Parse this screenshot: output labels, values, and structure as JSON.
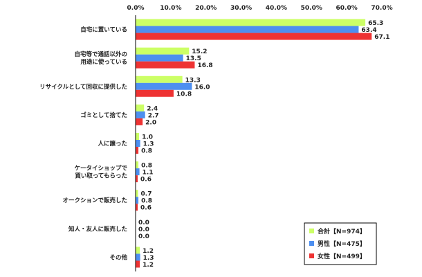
{
  "chart_data": {
    "type": "bar",
    "orientation": "horizontal",
    "xlim": [
      0,
      70
    ],
    "x_ticks": [
      0,
      10,
      20,
      30,
      40,
      50,
      60,
      70
    ],
    "x_tick_labels": [
      "0.0%",
      "10.0%",
      "20.0%",
      "30.0%",
      "40.0%",
      "50.0%",
      "60.0%",
      "70.0%"
    ],
    "x_tick_position": "top",
    "grid": false,
    "legend_position": "bottom-right",
    "categories": [
      [
        "自宅に置いている"
      ],
      [
        "自宅等で通話以外の",
        "用途に使っている"
      ],
      [
        "リサイクルとして回収に提供した"
      ],
      [
        "ゴミとして捨てた"
      ],
      [
        "人に譲った"
      ],
      [
        "ケータイショップで",
        "買い取ってもらった"
      ],
      [
        "オークションで販売した"
      ],
      [
        "知人・友人に販売した"
      ],
      [
        "その他"
      ]
    ],
    "series": [
      {
        "name": "合計【N=974】",
        "color": "#ccff66",
        "values": [
          65.3,
          15.2,
          13.3,
          2.4,
          1.0,
          0.8,
          0.7,
          0.0,
          1.2
        ]
      },
      {
        "name": "男性【N=475】",
        "color": "#4d8ff0",
        "values": [
          63.4,
          13.5,
          16.0,
          2.7,
          1.3,
          1.1,
          0.8,
          0.0,
          1.3
        ]
      },
      {
        "name": "女性【N=499】",
        "color": "#ee3333",
        "values": [
          67.1,
          16.8,
          10.8,
          2.0,
          0.8,
          0.6,
          0.6,
          0.0,
          1.2
        ]
      }
    ]
  }
}
